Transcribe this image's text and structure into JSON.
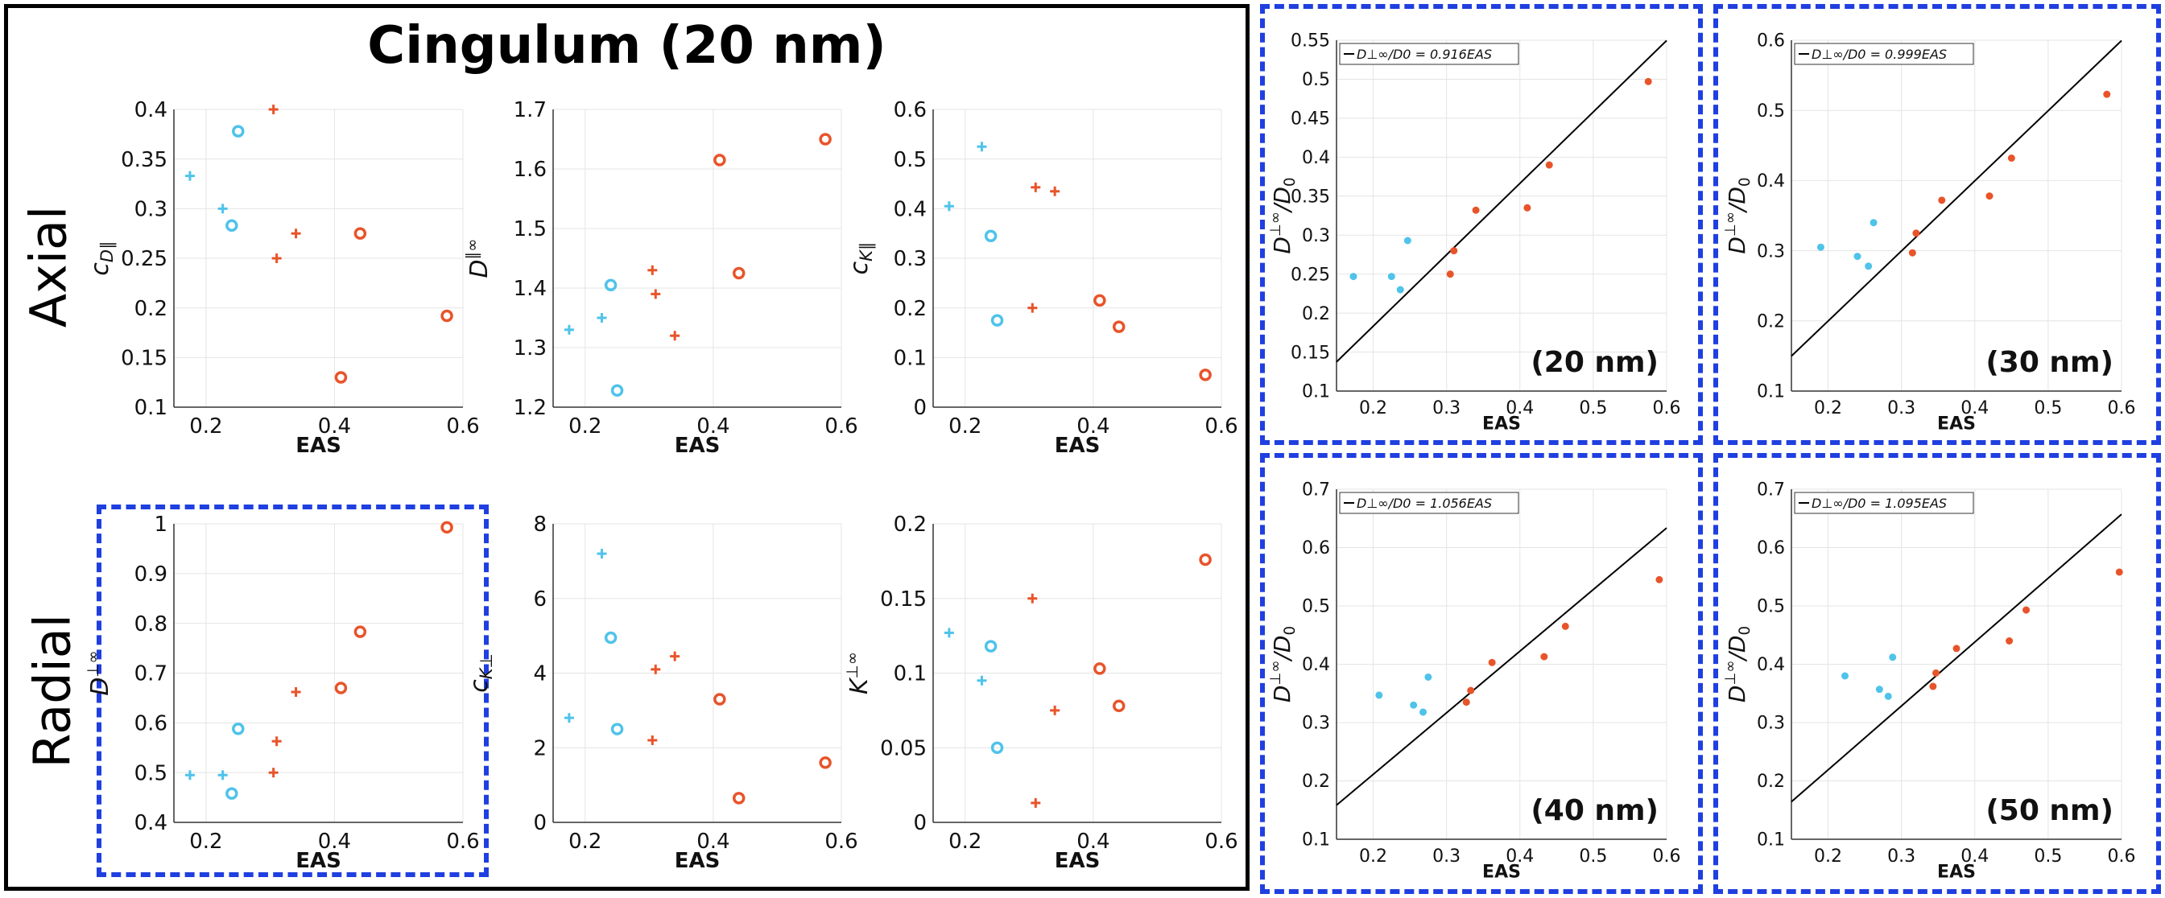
{
  "figure": {
    "title": "Cingulum (20 nm)",
    "row_labels": [
      "Axial",
      "Radial"
    ]
  },
  "colors": {
    "blue": "#4fc3ea",
    "orange": "#e8542a",
    "fit_line": "#000000",
    "box_border": "#1f3fe0"
  },
  "chart_data": [
    {
      "id": "axial-cD",
      "type": "scatter",
      "xlabel": "EAS",
      "ylabel": "c_{D∥}",
      "xlim": [
        0.15,
        0.6
      ],
      "ylim": [
        0.1,
        0.4
      ],
      "xticks": [
        "0.2",
        "0.4",
        "0.6"
      ],
      "yticks": [
        "0.1",
        "0.15",
        "0.2",
        "0.25",
        "0.3",
        "0.35",
        "0.4"
      ],
      "grid": true,
      "series": [
        {
          "color": "blue",
          "marker": "plus",
          "x": [
            0.175,
            0.226
          ],
          "y": [
            0.333,
            0.3
          ]
        },
        {
          "color": "blue",
          "marker": "circle",
          "x": [
            0.24,
            0.25
          ],
          "y": [
            0.283,
            0.378
          ]
        },
        {
          "color": "orange",
          "marker": "plus",
          "x": [
            0.305,
            0.31,
            0.34
          ],
          "y": [
            0.4,
            0.25,
            0.275
          ]
        },
        {
          "color": "orange",
          "marker": "circle",
          "x": [
            0.41,
            0.44,
            0.575
          ],
          "y": [
            0.13,
            0.275,
            0.192
          ]
        }
      ]
    },
    {
      "id": "axial-Dinf",
      "type": "scatter",
      "xlabel": "EAS",
      "ylabel": "D∥∞",
      "xlim": [
        0.15,
        0.6
      ],
      "ylim": [
        1.2,
        1.7
      ],
      "xticks": [
        "0.2",
        "0.4",
        "0.6"
      ],
      "yticks": [
        "1.2",
        "1.3",
        "1.4",
        "1.5",
        "1.6",
        "1.7"
      ],
      "grid": true,
      "series": [
        {
          "color": "blue",
          "marker": "plus",
          "x": [
            0.175,
            0.226
          ],
          "y": [
            1.33,
            1.35
          ]
        },
        {
          "color": "blue",
          "marker": "circle",
          "x": [
            0.24,
            0.25
          ],
          "y": [
            1.405,
            1.228
          ]
        },
        {
          "color": "orange",
          "marker": "plus",
          "x": [
            0.305,
            0.31,
            0.34
          ],
          "y": [
            1.43,
            1.39,
            1.32
          ]
        },
        {
          "color": "orange",
          "marker": "circle",
          "x": [
            0.41,
            0.44,
            0.575
          ],
          "y": [
            1.615,
            1.425,
            1.65
          ]
        }
      ]
    },
    {
      "id": "axial-cK",
      "type": "scatter",
      "xlabel": "EAS",
      "ylabel": "c_{K∥}",
      "xlim": [
        0.15,
        0.6
      ],
      "ylim": [
        0,
        0.6
      ],
      "xticks": [
        "0.2",
        "0.4",
        "0.6"
      ],
      "yticks": [
        "0",
        "0.1",
        "0.2",
        "0.3",
        "0.4",
        "0.5",
        "0.6"
      ],
      "grid": true,
      "series": [
        {
          "color": "blue",
          "marker": "plus",
          "x": [
            0.175,
            0.226
          ],
          "y": [
            0.405,
            0.525
          ]
        },
        {
          "color": "blue",
          "marker": "circle",
          "x": [
            0.24,
            0.25
          ],
          "y": [
            0.345,
            0.175
          ]
        },
        {
          "color": "orange",
          "marker": "plus",
          "x": [
            0.305,
            0.31,
            0.34
          ],
          "y": [
            0.2,
            0.443,
            0.435
          ]
        },
        {
          "color": "orange",
          "marker": "circle",
          "x": [
            0.41,
            0.44,
            0.575
          ],
          "y": [
            0.215,
            0.162,
            0.065
          ]
        }
      ]
    },
    {
      "id": "radial-Dinf",
      "type": "scatter",
      "xlabel": "EAS",
      "ylabel": "D⊥∞",
      "xlim": [
        0.15,
        0.6
      ],
      "ylim": [
        0.4,
        1.0
      ],
      "xticks": [
        "0.2",
        "0.4",
        "0.6"
      ],
      "yticks": [
        "0.4",
        "0.5",
        "0.6",
        "0.7",
        "0.8",
        "0.9",
        "1"
      ],
      "grid": true,
      "series": [
        {
          "color": "blue",
          "marker": "plus",
          "x": [
            0.175,
            0.226
          ],
          "y": [
            0.495,
            0.495
          ]
        },
        {
          "color": "blue",
          "marker": "circle",
          "x": [
            0.24,
            0.25
          ],
          "y": [
            0.458,
            0.588
          ]
        },
        {
          "color": "orange",
          "marker": "plus",
          "x": [
            0.305,
            0.31,
            0.34
          ],
          "y": [
            0.5,
            0.563,
            0.662
          ]
        },
        {
          "color": "orange",
          "marker": "circle",
          "x": [
            0.41,
            0.44,
            0.575
          ],
          "y": [
            0.67,
            0.783,
            0.993
          ]
        }
      ]
    },
    {
      "id": "radial-cK",
      "type": "scatter",
      "xlabel": "EAS",
      "ylabel": "c_{K⊥}",
      "xlim": [
        0.15,
        0.6
      ],
      "ylim": [
        0,
        8
      ],
      "xticks": [
        "0.2",
        "0.4",
        "0.6"
      ],
      "yticks": [
        "0",
        "2",
        "4",
        "6",
        "8"
      ],
      "grid": true,
      "series": [
        {
          "color": "blue",
          "marker": "plus",
          "x": [
            0.175,
            0.226
          ],
          "y": [
            2.8,
            7.2
          ]
        },
        {
          "color": "blue",
          "marker": "circle",
          "x": [
            0.24,
            0.25
          ],
          "y": [
            4.95,
            2.5
          ]
        },
        {
          "color": "orange",
          "marker": "plus",
          "x": [
            0.305,
            0.31,
            0.34
          ],
          "y": [
            2.2,
            4.1,
            4.45
          ]
        },
        {
          "color": "orange",
          "marker": "circle",
          "x": [
            0.41,
            0.44,
            0.575
          ],
          "y": [
            3.3,
            0.65,
            1.6
          ]
        }
      ]
    },
    {
      "id": "radial-Kinf",
      "type": "scatter",
      "xlabel": "EAS",
      "ylabel": "K⊥∞",
      "xlim": [
        0.15,
        0.6
      ],
      "ylim": [
        0,
        0.2
      ],
      "xticks": [
        "0.2",
        "0.4",
        "0.6"
      ],
      "yticks": [
        "0",
        "0.05",
        "0.1",
        "0.15",
        "0.2"
      ],
      "grid": true,
      "series": [
        {
          "color": "blue",
          "marker": "plus",
          "x": [
            0.175,
            0.226
          ],
          "y": [
            0.127,
            0.095
          ]
        },
        {
          "color": "blue",
          "marker": "circle",
          "x": [
            0.24,
            0.25
          ],
          "y": [
            0.118,
            0.05
          ]
        },
        {
          "color": "orange",
          "marker": "plus",
          "x": [
            0.305,
            0.31,
            0.34
          ],
          "y": [
            0.15,
            0.013,
            0.075
          ]
        },
        {
          "color": "orange",
          "marker": "circle",
          "x": [
            0.41,
            0.44,
            0.575
          ],
          "y": [
            0.103,
            0.078,
            0.176
          ]
        }
      ]
    },
    {
      "id": "fit-20nm",
      "type": "scatter",
      "xlabel": "EAS",
      "ylabel": "D⊥∞/D0",
      "annotation": "(20 nm)",
      "legend": "D⊥∞/D0 = 0.916EAS",
      "legend_position": "top-left",
      "fit_slope": 0.916,
      "xlim": [
        0.15,
        0.6
      ],
      "ylim": [
        0.1,
        0.55
      ],
      "xticks": [
        "0.2",
        "0.3",
        "0.4",
        "0.5",
        "0.6"
      ],
      "yticks": [
        "0.1",
        "0.15",
        "0.2",
        "0.25",
        "0.3",
        "0.35",
        "0.4",
        "0.45",
        "0.5",
        "0.55"
      ],
      "grid": true,
      "series": [
        {
          "color": "blue",
          "marker": "dot",
          "x": [
            0.173,
            0.225,
            0.237,
            0.247
          ],
          "y": [
            0.247,
            0.247,
            0.23,
            0.293
          ]
        },
        {
          "color": "orange",
          "marker": "dot",
          "x": [
            0.305,
            0.31,
            0.34,
            0.41,
            0.44,
            0.575
          ],
          "y": [
            0.25,
            0.28,
            0.332,
            0.335,
            0.39,
            0.497
          ]
        }
      ]
    },
    {
      "id": "fit-30nm",
      "type": "scatter",
      "xlabel": "EAS",
      "ylabel": "D⊥∞/D0",
      "annotation": "(30 nm)",
      "legend": "D⊥∞/D0 = 0.999EAS",
      "legend_position": "top-left",
      "fit_slope": 0.999,
      "xlim": [
        0.15,
        0.6
      ],
      "ylim": [
        0.1,
        0.6
      ],
      "xticks": [
        "0.2",
        "0.3",
        "0.4",
        "0.5",
        "0.6"
      ],
      "yticks": [
        "0.1",
        "0.2",
        "0.3",
        "0.4",
        "0.5",
        "0.6"
      ],
      "grid": true,
      "series": [
        {
          "color": "blue",
          "marker": "dot",
          "x": [
            0.19,
            0.24,
            0.255,
            0.262
          ],
          "y": [
            0.305,
            0.292,
            0.278,
            0.34
          ]
        },
        {
          "color": "orange",
          "marker": "dot",
          "x": [
            0.315,
            0.32,
            0.355,
            0.42,
            0.45,
            0.58
          ],
          "y": [
            0.297,
            0.325,
            0.372,
            0.378,
            0.432,
            0.523
          ]
        }
      ]
    },
    {
      "id": "fit-40nm",
      "type": "scatter",
      "xlabel": "EAS",
      "ylabel": "D⊥∞/D0",
      "annotation": "(40 nm)",
      "legend": "D⊥∞/D0 = 1.056EAS",
      "legend_position": "top-left",
      "fit_slope": 1.056,
      "xlim": [
        0.15,
        0.6
      ],
      "ylim": [
        0.1,
        0.7
      ],
      "xticks": [
        "0.2",
        "0.3",
        "0.4",
        "0.5",
        "0.6"
      ],
      "yticks": [
        "0.1",
        "0.2",
        "0.3",
        "0.4",
        "0.5",
        "0.6",
        "0.7"
      ],
      "grid": true,
      "series": [
        {
          "color": "blue",
          "marker": "dot",
          "x": [
            0.208,
            0.255,
            0.268,
            0.275
          ],
          "y": [
            0.347,
            0.33,
            0.318,
            0.378
          ]
        },
        {
          "color": "orange",
          "marker": "dot",
          "x": [
            0.327,
            0.333,
            0.362,
            0.433,
            0.462,
            0.59
          ],
          "y": [
            0.335,
            0.355,
            0.403,
            0.413,
            0.465,
            0.545
          ]
        }
      ]
    },
    {
      "id": "fit-50nm",
      "type": "scatter",
      "xlabel": "EAS",
      "ylabel": "D⊥∞/D0",
      "annotation": "(50 nm)",
      "legend": "D⊥∞/D0 = 1.095EAS",
      "legend_position": "top-left",
      "fit_slope": 1.095,
      "xlim": [
        0.15,
        0.6
      ],
      "ylim": [
        0.1,
        0.7
      ],
      "xticks": [
        "0.2",
        "0.3",
        "0.4",
        "0.5",
        "0.6"
      ],
      "yticks": [
        "0.1",
        "0.2",
        "0.3",
        "0.4",
        "0.5",
        "0.6",
        "0.7"
      ],
      "grid": true,
      "series": [
        {
          "color": "blue",
          "marker": "dot",
          "x": [
            0.223,
            0.27,
            0.282,
            0.288
          ],
          "y": [
            0.38,
            0.357,
            0.345,
            0.412
          ]
        },
        {
          "color": "orange",
          "marker": "dot",
          "x": [
            0.343,
            0.347,
            0.375,
            0.447,
            0.47,
            0.597
          ],
          "y": [
            0.362,
            0.385,
            0.427,
            0.44,
            0.493,
            0.558
          ]
        }
      ]
    }
  ]
}
